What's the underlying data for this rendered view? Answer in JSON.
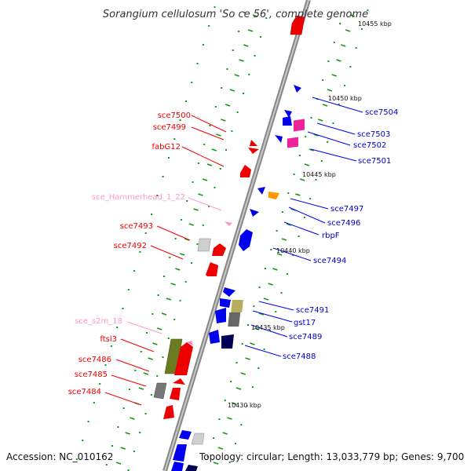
{
  "title": "Sorangium cellulosum 'So ce 56', complete genome",
  "footer": {
    "accession": "Accession: NC_010162",
    "topology": "Topology: circular; Length: 13,033,779 bp; Genes: 9,700"
  },
  "scale_labels": [
    "10455 kbp",
    "10450 kbp",
    "10445 kbp",
    "10440 kbp",
    "10435 kbp",
    "10430 kbp"
  ],
  "left_labels": [
    "sce7500",
    "sce7499",
    "fabG12",
    "sce_Hammerhead_1_22",
    "sce7493",
    "sce7492",
    "sce_s2m_18",
    "ftsl3",
    "sce7486",
    "sce7485",
    "sce7484"
  ],
  "right_labels": [
    "sce7504",
    "sce7503",
    "sce7502",
    "sce7501",
    "sce7497",
    "sce7496",
    "rbpF",
    "sce7494",
    "sce7491",
    "gst17",
    "sce7489",
    "sce7488"
  ],
  "colors": {
    "red": "#ff0000",
    "blue": "#0000ee",
    "navy": "#000066",
    "pink": "#ff99cc",
    "magenta": "#ff3399",
    "orange": "#ff9900",
    "gray": "#777777",
    "olive": "#667722",
    "khaki": "#b8ac60",
    "backbone": "#999999",
    "tick_green": "#119911"
  }
}
